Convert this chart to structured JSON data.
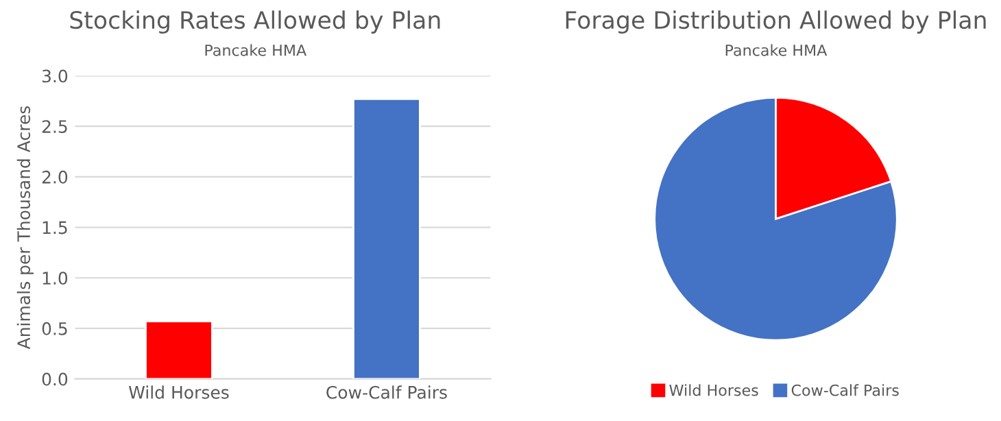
{
  "chart_data": [
    {
      "type": "bar",
      "title": "Stocking Rates Allowed by Plan",
      "subtitle": "Pancake HMA",
      "ylabel": "Animals per Thousand Acres",
      "categories": [
        "Wild Horses",
        "Cow-Calf Pairs"
      ],
      "values": [
        0.57,
        2.77
      ],
      "colors": [
        "#ff0000",
        "#4472c4"
      ],
      "ylim": [
        0,
        3.0
      ],
      "yticks": [
        {
          "value": 0,
          "label": "0.0"
        },
        {
          "value": 0.5,
          "label": "0.5"
        },
        {
          "value": 1.0,
          "label": "1.0"
        },
        {
          "value": 1.5,
          "label": "1.5"
        },
        {
          "value": 2.0,
          "label": "2.0"
        },
        {
          "value": 2.5,
          "label": "2.5"
        },
        {
          "value": 3.0,
          "label": "3.0"
        }
      ],
      "grid": "y"
    },
    {
      "type": "pie",
      "title": "Forage Distribution Allowed by Plan",
      "subtitle": "Pancake HMA",
      "categories": [
        "Wild Horses",
        "Cow-Calf Pairs"
      ],
      "values": [
        20,
        80
      ],
      "colors": [
        "#ff0000",
        "#4472c4"
      ],
      "legend": "bottom"
    }
  ]
}
